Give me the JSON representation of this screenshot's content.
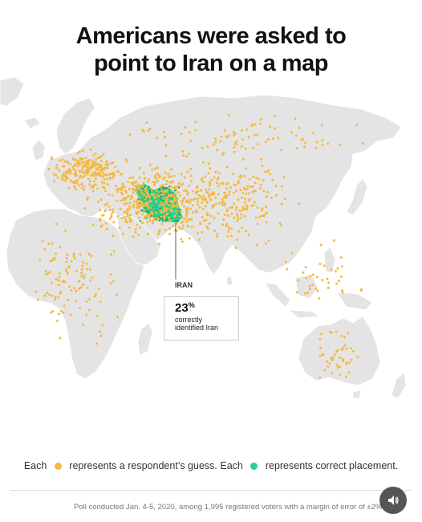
{
  "title": {
    "line1": "Americans were asked to",
    "line2": "point to Iran on a map"
  },
  "callout": {
    "country": "IRAN",
    "percent": "23",
    "percent_sign": "%",
    "text": "correctly identified Iran"
  },
  "legend": {
    "part1": "Each",
    "part2": "represents a respondent’s guess. Each",
    "part3": "represents correct placement.",
    "guess_color": "#f5b942",
    "correct_color": "#2fce8e"
  },
  "footnote": "Poll conducted Jan. 4-5, 2020, among 1,995 registered voters with a margin of error of ±2%.",
  "colors": {
    "land": "#e4e4e4",
    "land_border": "#ffffff",
    "iran": "#2fce8e",
    "text": "#111111"
  },
  "icons": {
    "audio": "speaker-icon"
  }
}
